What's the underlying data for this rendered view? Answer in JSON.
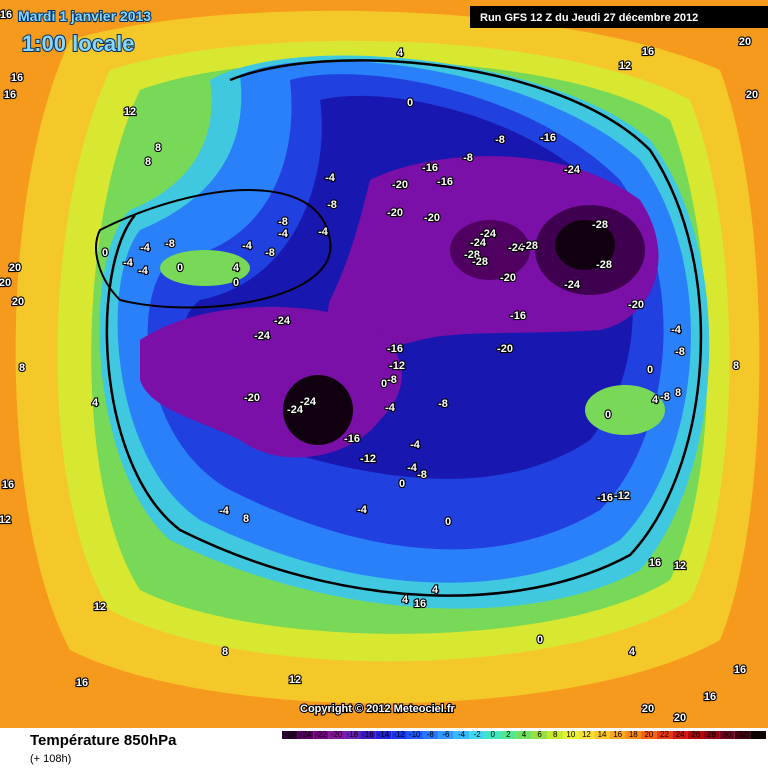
{
  "header": {
    "date": "Mardi 1 janvier 2013",
    "time": "1:00 locale",
    "run": "Run GFS 12 Z du Jeudi 27 décembre 2012"
  },
  "map": {
    "labels": [
      "16",
      "16",
      "16",
      "12",
      "8",
      "8",
      "4",
      "0",
      "12",
      "16",
      "20",
      "20",
      "-8",
      "-16",
      "-8",
      "-16",
      "-16",
      "-20",
      "-20",
      "-20",
      "-24",
      "-4",
      "-8",
      "-4",
      "-8",
      "-4",
      "-8",
      "-4",
      "-8",
      "-4",
      "0",
      "-4",
      "-4",
      "0",
      "4",
      "0",
      "20",
      "20",
      "20",
      "-24",
      "-24",
      "-28",
      "-28",
      "-24",
      "-28",
      "-28",
      "-28",
      "-24",
      "-20",
      "-20",
      "-16",
      "-24",
      "-24",
      "-16",
      "-12",
      "-8",
      "-20",
      "-20",
      "-24",
      "-24",
      "-16",
      "-4",
      "-8",
      "-12",
      "-4",
      "-4",
      "-8",
      "0",
      "-4",
      "8",
      "-4",
      "-16",
      "-12",
      "0",
      "0",
      "4",
      "-8",
      "-4",
      "8",
      "-8",
      "8",
      "8",
      "4",
      "16",
      "12",
      "12",
      "8",
      "16",
      "12",
      "4",
      "4",
      "0",
      "4",
      "16",
      "12",
      "16",
      "16",
      "20",
      "20",
      "16",
      "0",
      "0"
    ],
    "copyright": "Copyright © 2012 Meteociel.fr"
  },
  "footer": {
    "title": "Température 850hPa",
    "lead": "(+ 108h)"
  },
  "legend": {
    "values": [
      -26,
      -24,
      -22,
      -20,
      -18,
      -16,
      -14,
      -12,
      -10,
      -8,
      -6,
      -4,
      -2,
      0,
      2,
      4,
      6,
      8,
      10,
      12,
      14,
      16,
      18,
      20,
      22,
      24,
      26,
      28,
      30,
      32,
      34
    ],
    "colors": [
      "#2a0030",
      "#50005a",
      "#72007e",
      "#8a10a0",
      "#6a20b8",
      "#3c18c0",
      "#2020d8",
      "#1838f0",
      "#2058ff",
      "#2878ff",
      "#3098ff",
      "#38b8ff",
      "#40d8f0",
      "#40e8c0",
      "#50e890",
      "#70e060",
      "#98e040",
      "#c8e830",
      "#e8f030",
      "#f8e030",
      "#f8c828",
      "#f8a820",
      "#f88818",
      "#f86010",
      "#e83810",
      "#d01810",
      "#b00808",
      "#900010",
      "#700020",
      "#400010",
      "#100000"
    ]
  }
}
